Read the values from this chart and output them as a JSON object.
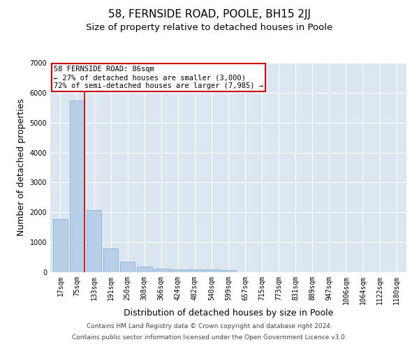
{
  "title": "58, FERNSIDE ROAD, POOLE, BH15 2JJ",
  "subtitle": "Size of property relative to detached houses in Poole",
  "xlabel": "Distribution of detached houses by size in Poole",
  "ylabel": "Number of detached properties",
  "footer1": "Contains HM Land Registry data © Crown copyright and database right 2024.",
  "footer2": "Contains public sector information licensed under the Open Government Licence v3.0.",
  "bar_labels": [
    "17sqm",
    "75sqm",
    "133sqm",
    "191sqm",
    "250sqm",
    "308sqm",
    "366sqm",
    "424sqm",
    "482sqm",
    "540sqm",
    "599sqm",
    "657sqm",
    "715sqm",
    "773sqm",
    "831sqm",
    "889sqm",
    "947sqm",
    "1006sqm",
    "1064sqm",
    "1122sqm",
    "1180sqm"
  ],
  "bar_values": [
    1780,
    5750,
    2080,
    800,
    340,
    195,
    115,
    95,
    85,
    90,
    75,
    0,
    0,
    0,
    0,
    0,
    0,
    0,
    0,
    0,
    0
  ],
  "bar_color": "#b8cfe8",
  "bar_edge_color": "#7aaad0",
  "highlight_color": "#cc0000",
  "property_line_x": 1.45,
  "annotation_line1": "58 FERNSIDE ROAD: 86sqm",
  "annotation_line2": "← 27% of detached houses are smaller (3,000)",
  "annotation_line3": "72% of semi-detached houses are larger (7,985) →",
  "annotation_box_color": "#ffffff",
  "annotation_box_edge_color": "#cc0000",
  "ylim": [
    0,
    7000
  ],
  "yticks": [
    0,
    1000,
    2000,
    3000,
    4000,
    5000,
    6000,
    7000
  ],
  "plot_bg_color": "#dce6f0",
  "grid_color": "#ffffff",
  "title_fontsize": 11,
  "subtitle_fontsize": 9.5,
  "axis_label_fontsize": 9,
  "tick_fontsize": 7,
  "annotation_fontsize": 7.5,
  "footer_fontsize": 6.5
}
